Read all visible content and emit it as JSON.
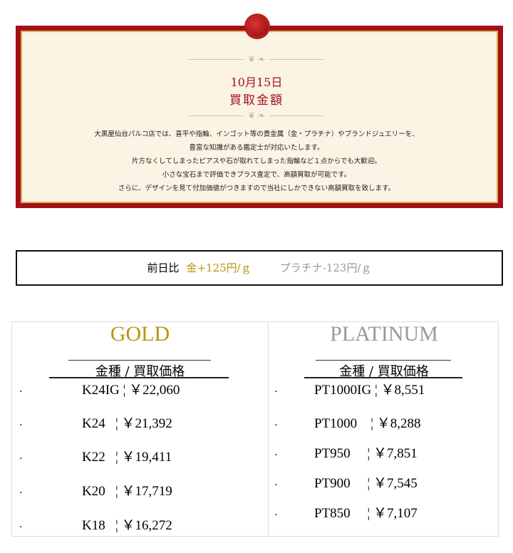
{
  "banner": {
    "date": "10月15日",
    "title": "買取金額",
    "lines": [
      "大黒屋仙台パルコ店では、喜平や指輪、インゴット等の貴金属（金・プラチナ）やブランドジュエリーを、",
      "豊富な知識がある鑑定士が対応いたします。",
      "片方なくしてしまったピアスや石が取れてしまった指輪など１点からでも大歓迎。",
      "小さな宝石まで評価できプラス査定で、高額買取が可能です。",
      "さらに、デザインを見て付加価値がつきますので当社にしかできない高額買取を致します。"
    ]
  },
  "comparison": {
    "label": "前日比",
    "gold": "金+125円/ｇ",
    "platinum": "プラチナ-123円/ｇ"
  },
  "gold": {
    "heading": "GOLD",
    "subheading": "金種 / 買取価格",
    "color": "#b8960c",
    "rows": [
      "K24IG ¦ ￥22,060",
      "K24   ¦ ￥21,392",
      "K22   ¦ ￥19,411",
      "K20   ¦ ￥17,719",
      "K18   ¦ ￥16,272"
    ]
  },
  "platinum": {
    "heading": "PLATINUM",
    "subheading": "金種 / 買取価格",
    "color": "#999999",
    "rows": [
      "PT1000IG ¦ ￥8,551",
      "PT1000    ¦ ￥8,288",
      "PT950     ¦ ￥7,851",
      "PT900     ¦ ￥7,545",
      "PT850     ¦ ￥7,107"
    ]
  }
}
